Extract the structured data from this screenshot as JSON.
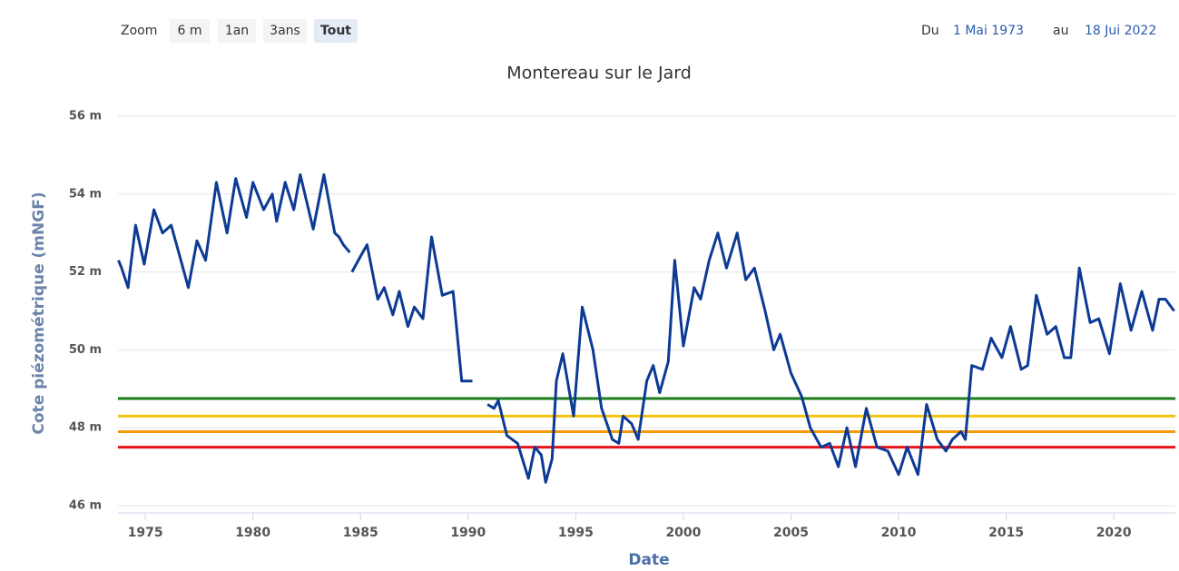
{
  "toolbar": {
    "zoom_label": "Zoom",
    "buttons": [
      "6 m",
      "1an",
      "3ans",
      "Tout"
    ],
    "selected": 3,
    "from_label": "Du",
    "from": "1 Mai 1973",
    "to_label": "au",
    "to": "18 Jui 2022"
  },
  "chart_data": {
    "type": "line",
    "title": "Montereau sur le Jard",
    "y_label": "Cote piézométrique (mNGF)",
    "x_label": "Date",
    "color": "#0d3a94",
    "xlim": [
      1973.73,
      2022.86
    ],
    "xticks": [
      1975,
      1980,
      1985,
      1990,
      1995,
      2000,
      2005,
      2010,
      2015,
      2020
    ],
    "ylim": [
      46,
      56
    ],
    "yticks": [
      {
        "value": 46,
        "label": "46 m"
      },
      {
        "value": 48,
        "label": "48 m"
      },
      {
        "value": 50,
        "label": "50 m"
      },
      {
        "value": 52,
        "label": "52 m"
      },
      {
        "value": 54,
        "label": "54 m"
      },
      {
        "value": 56,
        "label": "56 m"
      }
    ],
    "grid": true,
    "plot_lines": [
      {
        "value": 48.75,
        "color": "#1b7d1b"
      },
      {
        "value": 48.3,
        "color": "#f2c40f"
      },
      {
        "value": 47.9,
        "color": "#f59a0a"
      },
      {
        "value": 47.5,
        "color": "#e8141a"
      }
    ],
    "x": [
      1973.75,
      1973.9,
      1974.2,
      1974.55,
      1974.95,
      1975.4,
      1975.8,
      1976.2,
      1976.6,
      1977.0,
      1977.4,
      1977.8,
      1978.3,
      1978.8,
      1979.2,
      1979.7,
      1980.0,
      1980.5,
      1980.9,
      1981.1,
      1981.5,
      1981.9,
      1982.2,
      1982.8,
      1983.3,
      1983.8,
      1984.0,
      1984.2,
      1984.5,
      1984.55,
      1984.6,
      1985.0,
      1985.3,
      1985.8,
      1986.1,
      1986.5,
      1986.8,
      1987.2,
      1987.5,
      1987.9,
      1988.3,
      1988.8,
      1989.3,
      1989.7,
      1990.2,
      1990.5,
      1990.9,
      1991.2,
      1991.4,
      1991.8,
      1992.3,
      1992.8,
      1993.1,
      1993.4,
      1993.6,
      1993.9,
      1994.1,
      1994.4,
      1994.9,
      1995.3,
      1995.8,
      1996.2,
      1996.7,
      1997.0,
      1997.2,
      1997.6,
      1997.9,
      1998.3,
      1998.6,
      1998.9,
      1999.3,
      1999.6,
      2000.0,
      2000.5,
      2000.8,
      2001.2,
      2001.6,
      2002.0,
      2002.5,
      2002.9,
      2003.3,
      2003.8,
      2004.2,
      2004.5,
      2005.0,
      2005.5,
      2005.9,
      2006.4,
      2006.8,
      2007.2,
      2007.6,
      2008.0,
      2008.5,
      2009.0,
      2009.5,
      2010.0,
      2010.4,
      2010.9,
      2011.3,
      2011.8,
      2012.2,
      2012.5,
      2012.9,
      2013.1,
      2013.4,
      2013.9,
      2014.3,
      2014.8,
      2015.2,
      2015.7,
      2016.0,
      2016.4,
      2016.9,
      2017.3,
      2017.7,
      2018.0,
      2018.4,
      2018.9,
      2019.3,
      2019.8,
      2020.3,
      2020.8,
      2021.3,
      2021.8,
      2022.1,
      2022.4,
      2022.8
    ],
    "values": [
      52.3,
      52.1,
      51.6,
      53.2,
      52.2,
      53.6,
      53.0,
      53.2,
      52.4,
      51.6,
      52.8,
      52.3,
      54.3,
      53.0,
      54.4,
      53.4,
      54.3,
      53.6,
      54.0,
      53.3,
      54.3,
      53.6,
      54.5,
      53.1,
      54.5,
      53.0,
      52.9,
      52.7,
      52.5,
      null,
      52.0,
      52.4,
      52.7,
      51.3,
      51.6,
      50.9,
      51.5,
      50.6,
      51.1,
      50.8,
      52.9,
      51.4,
      51.5,
      49.2,
      49.2,
      null,
      48.6,
      48.5,
      48.7,
      47.8,
      47.6,
      46.7,
      47.5,
      47.3,
      46.6,
      47.2,
      49.2,
      49.9,
      48.3,
      51.1,
      50.0,
      48.5,
      47.7,
      47.6,
      48.3,
      48.1,
      47.7,
      49.2,
      49.6,
      48.9,
      49.7,
      52.3,
      50.1,
      51.6,
      51.3,
      52.3,
      53.0,
      52.1,
      53.0,
      51.8,
      52.1,
      51.0,
      50.0,
      50.4,
      49.4,
      48.8,
      48.0,
      47.5,
      47.6,
      47.0,
      48.0,
      47.0,
      48.5,
      47.5,
      47.4,
      46.8,
      47.5,
      46.8,
      48.6,
      47.7,
      47.4,
      47.7,
      47.9,
      47.7,
      49.6,
      49.5,
      50.3,
      49.8,
      50.6,
      49.5,
      49.6,
      51.4,
      50.4,
      50.6,
      49.8,
      49.8,
      52.1,
      50.7,
      50.8,
      49.9,
      51.7,
      50.5,
      51.5,
      50.5,
      51.3,
      51.3,
      51.0
    ]
  }
}
